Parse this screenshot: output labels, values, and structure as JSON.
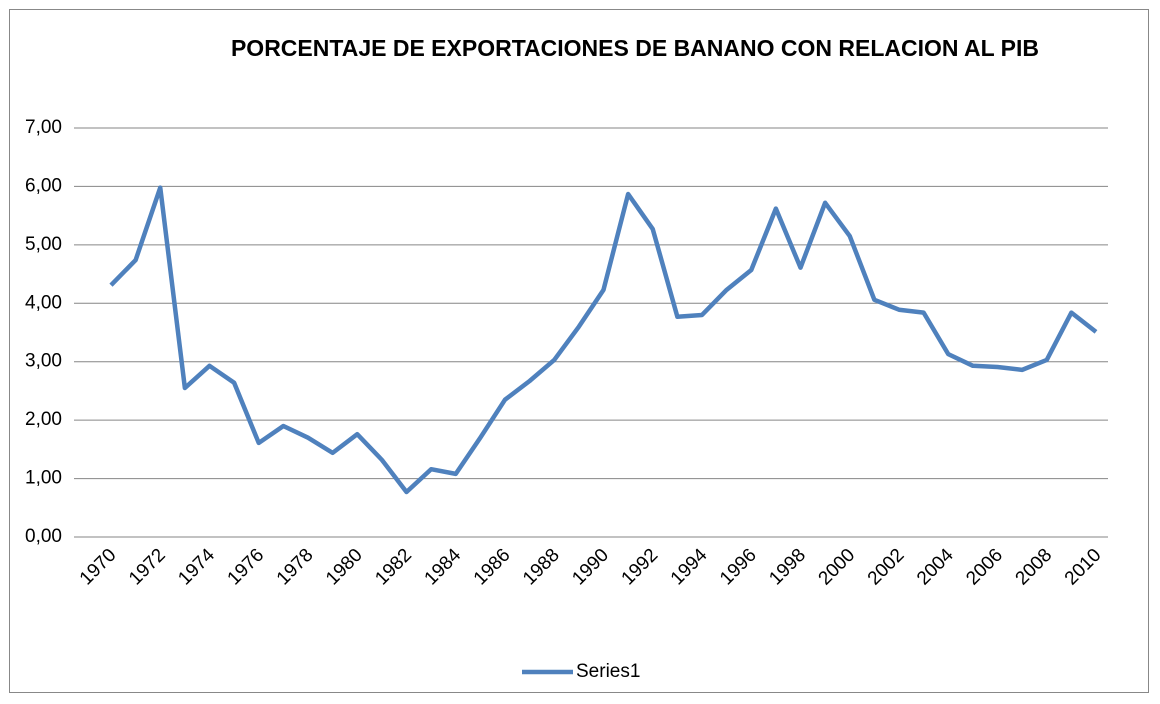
{
  "chart_data": {
    "type": "line",
    "title": "PORCENTAJE DE EXPORTACIONES DE BANANO CON RELACION AL PIB",
    "categories": [
      1970,
      null,
      1972,
      null,
      1974,
      null,
      1976,
      null,
      1978,
      null,
      1980,
      null,
      1982,
      null,
      1984,
      null,
      1986,
      null,
      1988,
      null,
      1990,
      null,
      1992,
      null,
      1994,
      null,
      1996,
      null,
      1998,
      null,
      2000,
      null,
      2002,
      null,
      2004,
      null,
      2006,
      null,
      2008,
      null,
      2010
    ],
    "series": [
      {
        "name": "Series1",
        "color": "#4f81bd",
        "values": [
          4.31,
          4.74,
          5.98,
          2.55,
          2.93,
          2.64,
          1.61,
          1.9,
          1.7,
          1.44,
          1.76,
          1.32,
          0.77,
          1.16,
          1.08,
          1.7,
          2.35,
          2.67,
          3.03,
          3.6,
          4.23,
          5.87,
          5.27,
          3.77,
          3.8,
          4.23,
          4.57,
          5.62,
          4.61,
          5.72,
          5.15,
          4.06,
          3.89,
          3.84,
          3.13,
          2.93,
          2.91,
          2.86,
          3.03,
          3.84,
          3.51
        ]
      }
    ],
    "ylim": [
      0,
      7
    ],
    "yticks": [
      {
        "value": 0,
        "label": "0,00"
      },
      {
        "value": 1,
        "label": "1,00"
      },
      {
        "value": 2,
        "label": "2,00"
      },
      {
        "value": 3,
        "label": "3,00"
      },
      {
        "value": 4,
        "label": "4,00"
      },
      {
        "value": 5,
        "label": "5,00"
      },
      {
        "value": 6,
        "label": "6,00"
      },
      {
        "value": 7,
        "label": "7,00"
      }
    ],
    "grid": true,
    "legend": "bottom"
  }
}
